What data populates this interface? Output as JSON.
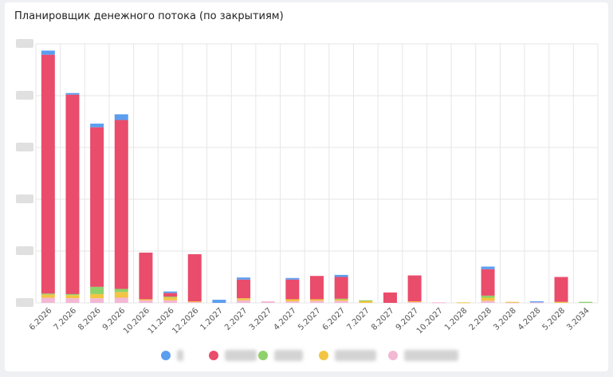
{
  "title": "Планировщик денежного потока (по закрытиям)",
  "chart_data": {
    "type": "bar",
    "stacked": true,
    "grid": true,
    "legend_position": "bottom",
    "ylim": [
      0,
      5
    ],
    "y_ticks": [
      "",
      "",
      "",
      "",
      "",
      ""
    ],
    "categories": [
      "6.2026",
      "7.2026",
      "8.2026",
      "9.2026",
      "10.2026",
      "11.2026",
      "12.2026",
      "1.2027",
      "2.2027",
      "3.2027",
      "4.2027",
      "5.2027",
      "6.2027",
      "7.2027",
      "8.2027",
      "9.2027",
      "10.2027",
      "1.2028",
      "2.2028",
      "3.2028",
      "4.2028",
      "5.2028",
      "3.2034"
    ],
    "series": [
      {
        "name": "",
        "color": "#f3b8d4",
        "values": [
          0.1,
          0.09,
          0.09,
          0.1,
          0.05,
          0.05,
          0.02,
          0.0,
          0.05,
          0.03,
          0.03,
          0.04,
          0.04,
          0.0,
          0.0,
          0.02,
          0.01,
          0.0,
          0.04,
          0.01,
          0.01,
          0.0,
          0.0
        ]
      },
      {
        "name": "",
        "color": "#f3c542",
        "values": [
          0.06,
          0.06,
          0.08,
          0.11,
          0.02,
          0.06,
          0.01,
          0.0,
          0.04,
          0.0,
          0.04,
          0.03,
          0.03,
          0.04,
          0.0,
          0.01,
          0.0,
          0.01,
          0.06,
          0.01,
          0.0,
          0.02,
          0.0
        ]
      },
      {
        "name": "",
        "color": "#8fd16a",
        "values": [
          0.02,
          0.02,
          0.14,
          0.06,
          0.0,
          0.01,
          0.0,
          0.0,
          0.0,
          0.0,
          0.0,
          0.0,
          0.01,
          0.01,
          0.0,
          0.0,
          0.0,
          0.0,
          0.04,
          0.0,
          0.0,
          0.0,
          0.02
        ]
      },
      {
        "name": "",
        "color": "#ea4c6b",
        "values": [
          4.61,
          3.85,
          3.08,
          3.26,
          0.9,
          0.07,
          0.91,
          0.0,
          0.36,
          0.0,
          0.38,
          0.45,
          0.42,
          0.0,
          0.2,
          0.5,
          0.0,
          0.0,
          0.51,
          0.0,
          0.0,
          0.48,
          0.0
        ]
      },
      {
        "name": "",
        "color": "#5b9ef0",
        "values": [
          0.08,
          0.03,
          0.07,
          0.11,
          0.0,
          0.03,
          0.0,
          0.06,
          0.04,
          0.0,
          0.03,
          0.0,
          0.04,
          0.0,
          0.0,
          0.0,
          0.0,
          0.0,
          0.05,
          0.0,
          0.02,
          0.0,
          0.0
        ]
      }
    ]
  },
  "colors": {
    "background": "#eef0f3",
    "card": "#ffffff",
    "gridline": "#e6e6e6",
    "axis_label": "#555555",
    "neutral_series_tint": "#d6d6d6"
  },
  "legend": [
    {
      "color": "#5b9ef0",
      "label": "",
      "icon": "blue-dot-icon"
    },
    {
      "color": "#ea4c6b",
      "label": "",
      "icon": "red-dot-icon"
    },
    {
      "color": "#8fd16a",
      "label": "",
      "icon": "green-dot-icon"
    },
    {
      "color": "#f3c542",
      "label": "",
      "icon": "yellow-dot-icon"
    },
    {
      "color": "#f3b8d4",
      "label": "",
      "icon": "pink-dot-icon"
    }
  ]
}
